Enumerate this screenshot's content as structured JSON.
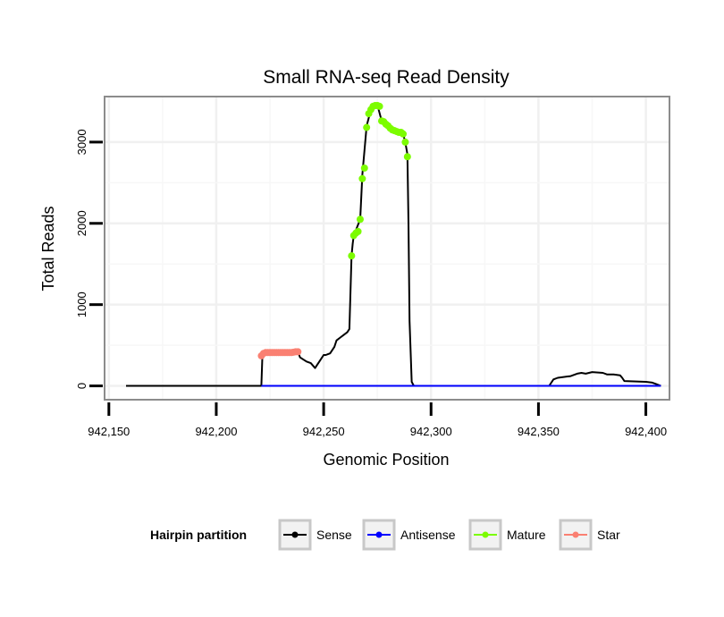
{
  "chart_data": {
    "type": "line",
    "title": "Small RNA-seq Read Density",
    "xlabel": "Genomic Position",
    "ylabel": "Total Reads",
    "xlim": [
      942148,
      942411
    ],
    "ylim": [
      -170,
      3560
    ],
    "x_ticks": [
      942150,
      942200,
      942250,
      942300,
      942350,
      942400
    ],
    "x_tick_labels": [
      "942,150",
      "942,200",
      "942,250",
      "942,300",
      "942,350",
      "942,400"
    ],
    "y_ticks": [
      0,
      1000,
      2000,
      3000
    ],
    "y_tick_labels": [
      "0",
      "1000",
      "2000",
      "3000"
    ],
    "grid": true,
    "legend": {
      "title": "Hairpin partition",
      "position": "bottom",
      "entries": [
        {
          "label": "Sense",
          "color": "#000000"
        },
        {
          "label": "Antisense",
          "color": "#0000ff"
        },
        {
          "label": "Mature",
          "color": "#7cfc00"
        },
        {
          "label": "Star",
          "color": "#fa8072"
        }
      ]
    },
    "series": [
      {
        "name": "Sense",
        "color": "#000000",
        "x": [
          942158,
          942221,
          942221.5,
          942238,
          942239,
          942242,
          942244,
          942245,
          942246,
          942248,
          942250,
          942251,
          942252,
          942253,
          942255,
          942256,
          942258,
          942259,
          942261,
          942262,
          942263,
          942263.5,
          942264,
          942267,
          942268,
          942270,
          942272,
          942273,
          942274,
          942275,
          942277,
          942280,
          942282,
          942285,
          942287,
          942288,
          942289,
          942289.5,
          942290,
          942291,
          942292,
          942355,
          942357,
          942359,
          942365,
          942368,
          942370,
          942372,
          942375,
          942380,
          942382,
          942385,
          942388,
          942389,
          942390,
          942400,
          942403,
          942405,
          942407
        ],
        "y": [
          0,
          0,
          380,
          420,
          350,
          300,
          280,
          250,
          220,
          300,
          380,
          380,
          390,
          400,
          480,
          560,
          600,
          620,
          660,
          700,
          1600,
          1750,
          1850,
          2050,
          2600,
          3200,
          3400,
          3450,
          3470,
          3460,
          3260,
          3200,
          3150,
          3120,
          3100,
          3000,
          2850,
          2000,
          800,
          50,
          0,
          0,
          80,
          100,
          120,
          150,
          160,
          150,
          170,
          160,
          140,
          140,
          130,
          100,
          60,
          50,
          40,
          20,
          0
        ]
      },
      {
        "name": "Antisense",
        "color": "#0000ff",
        "x": [
          942221,
          942407
        ],
        "y": [
          0,
          0
        ]
      },
      {
        "name": "Mature",
        "color": "#7cfc00",
        "x": [
          942263,
          942264,
          942265,
          942266,
          942267,
          942268,
          942269,
          942270,
          942271,
          942272,
          942273,
          942274,
          942275,
          942276,
          942277,
          942278,
          942279,
          942280,
          942281,
          942282,
          942283,
          942284,
          942285,
          942286,
          942287,
          942288,
          942289
        ],
        "y": [
          1600,
          1850,
          1880,
          1900,
          2050,
          2550,
          2680,
          3180,
          3350,
          3400,
          3440,
          3450,
          3450,
          3440,
          3260,
          3250,
          3220,
          3200,
          3170,
          3150,
          3140,
          3130,
          3120,
          3120,
          3100,
          3000,
          2820
        ]
      },
      {
        "name": "Star",
        "color": "#fa8072",
        "x": [
          942221,
          942222,
          942223,
          942224,
          942225,
          942226,
          942227,
          942228,
          942229,
          942230,
          942231,
          942232,
          942233,
          942234,
          942235,
          942236,
          942237,
          942238
        ],
        "y": [
          370,
          400,
          410,
          410,
          410,
          410,
          410,
          410,
          410,
          410,
          410,
          410,
          410,
          410,
          410,
          415,
          420,
          420
        ]
      }
    ]
  }
}
